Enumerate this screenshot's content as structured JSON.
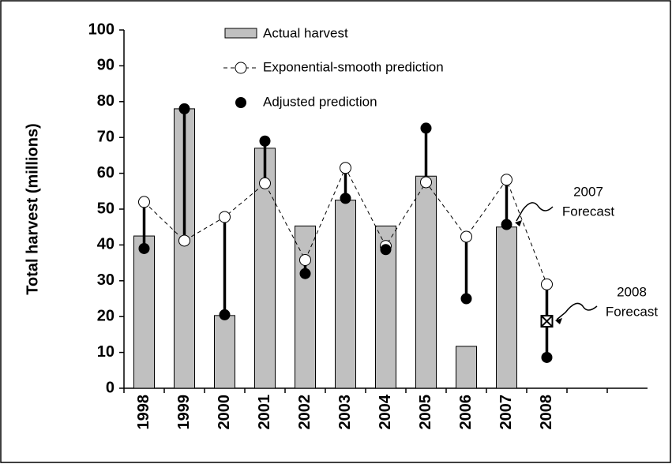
{
  "chart_data": {
    "type": "bar-line",
    "y_label": "Total harvest (millions)",
    "categories": [
      "1998",
      "1999",
      "2000",
      "2001",
      "2002",
      "2003",
      "2004",
      "2005",
      "2006",
      "2007",
      "2008",
      null,
      null
    ],
    "series": [
      {
        "name": "Actual harvest",
        "kind": "bar",
        "color": "#c0c0c0",
        "values": [
          42.5,
          78,
          20.3,
          67,
          45.3,
          52.5,
          45.3,
          59.2,
          11.7,
          45,
          null,
          null,
          null
        ]
      },
      {
        "name": "Exponential-smooth prediction",
        "kind": "line",
        "color": "#000000",
        "values": [
          52,
          41.2,
          47.8,
          57.2,
          35.8,
          61.5,
          39.7,
          57.5,
          42.3,
          58.2,
          29,
          null,
          null
        ]
      },
      {
        "name": "Adjusted prediction",
        "kind": "dot",
        "color": "#000000",
        "values": [
          39,
          78,
          20.5,
          69,
          32,
          53,
          38.7,
          72.6,
          25,
          45.7,
          8.6,
          null,
          null
        ]
      }
    ],
    "forecast_marker": 18.7,
    "annotations": [
      {
        "lines": [
          "2007",
          "Forecast"
        ]
      },
      {
        "lines": [
          "2008",
          "Forecast"
        ]
      }
    ],
    "ylim": [
      0,
      100
    ],
    "yticks": [
      0,
      10,
      20,
      30,
      40,
      50,
      60,
      70,
      80,
      90,
      100
    ],
    "grid": false
  }
}
